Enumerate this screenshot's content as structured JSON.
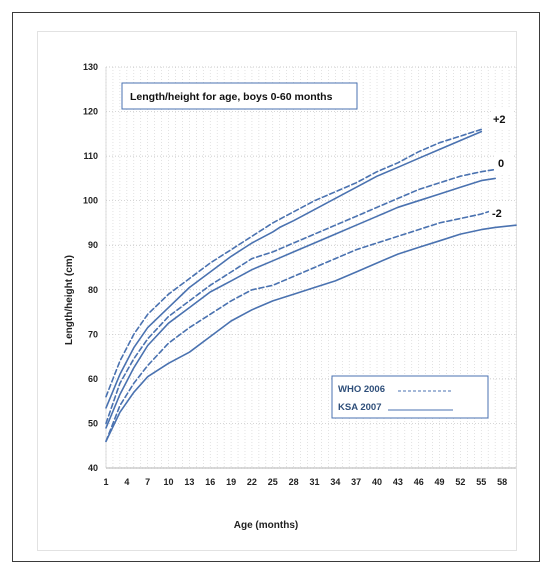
{
  "chart_data": {
    "type": "line",
    "title": "Length/height for age, boys 0-60 months",
    "xlabel": "Age (months)",
    "ylabel": "Length/height (cm)",
    "xlim": [
      1,
      60
    ],
    "ylim": [
      40,
      130
    ],
    "yticks": [
      40,
      50,
      60,
      70,
      80,
      90,
      100,
      110,
      120,
      130
    ],
    "xticks": [
      1,
      4,
      7,
      10,
      13,
      16,
      19,
      22,
      25,
      28,
      31,
      34,
      37,
      40,
      43,
      46,
      49,
      52,
      55,
      58
    ],
    "grid": "dotted",
    "legend_position": "bottom-right",
    "legend": [
      {
        "label": "WHO 2006",
        "style": "dashed"
      },
      {
        "label": "KSA 2007",
        "style": "solid"
      }
    ],
    "zscore_labels": [
      "+2",
      "0",
      "-2"
    ],
    "color": "#4a72b0",
    "series": [
      {
        "name": "WHO 2006 +2",
        "style": "dashed",
        "x": [
          1,
          3,
          5,
          7,
          10,
          13,
          16,
          19,
          22,
          25,
          28,
          31,
          34,
          37,
          40,
          43,
          46,
          49,
          52,
          55
        ],
        "values": [
          56,
          64,
          70,
          74.5,
          79,
          82.5,
          86,
          89,
          92,
          95,
          97.5,
          100,
          102,
          104,
          106.5,
          108.5,
          111,
          113,
          114.5,
          116
        ]
      },
      {
        "name": "WHO 2006 0",
        "style": "dashed",
        "x": [
          1,
          3,
          5,
          7,
          10,
          13,
          16,
          19,
          22,
          25,
          28,
          31,
          34,
          37,
          40,
          43,
          46,
          49,
          52,
          55,
          57
        ],
        "values": [
          50,
          59,
          64.5,
          69,
          74,
          77.5,
          81,
          84,
          87,
          88.5,
          90.5,
          92.5,
          94.5,
          96.5,
          98.5,
          100.5,
          102.5,
          104,
          105.5,
          106.5,
          107
        ]
      },
      {
        "name": "WHO 2006 -2",
        "style": "dashed",
        "x": [
          1,
          3,
          5,
          7,
          10,
          13,
          16,
          19,
          22,
          25,
          28,
          31,
          34,
          37,
          40,
          43,
          46,
          49,
          52,
          55,
          57
        ],
        "values": [
          46,
          54,
          59,
          63,
          68,
          71.5,
          74.5,
          77.5,
          80,
          81,
          83,
          85,
          87,
          89,
          90.5,
          92,
          93.5,
          95,
          96,
          97,
          98
        ]
      },
      {
        "name": "KSA 2007 +2",
        "style": "solid",
        "x": [
          1,
          3,
          5,
          7,
          10,
          13,
          16,
          19,
          22,
          25,
          26,
          28,
          31,
          34,
          37,
          40,
          43,
          46,
          49,
          52,
          55
        ],
        "values": [
          53.5,
          61,
          67,
          71.5,
          76,
          80.5,
          84,
          87.5,
          90.5,
          93,
          94,
          95.5,
          98,
          100.5,
          103,
          105.5,
          107.5,
          109.5,
          111.5,
          113.5,
          115.5
        ]
      },
      {
        "name": "KSA 2007 0",
        "style": "solid",
        "x": [
          1,
          3,
          5,
          7,
          10,
          13,
          16,
          19,
          22,
          25,
          28,
          31,
          34,
          37,
          40,
          43,
          46,
          49,
          52,
          55,
          57
        ],
        "values": [
          49,
          56.5,
          62.5,
          67.5,
          72.5,
          76,
          79.5,
          82,
          84.5,
          86.5,
          88.5,
          90.5,
          92.5,
          94.5,
          96.5,
          98.5,
          100,
          101.5,
          103,
          104.5,
          105
        ]
      },
      {
        "name": "KSA 2007 -2",
        "style": "solid",
        "x": [
          1,
          3,
          5,
          7,
          10,
          13,
          16,
          19,
          22,
          25,
          28,
          31,
          34,
          37,
          40,
          43,
          46,
          49,
          52,
          55,
          57,
          60
        ],
        "values": [
          46,
          52.5,
          57,
          60.5,
          63.5,
          66,
          69.5,
          73,
          75.5,
          77.5,
          79,
          80.5,
          82,
          84,
          86,
          88,
          89.5,
          91,
          92.5,
          93.5,
          94,
          94.5
        ]
      }
    ]
  }
}
